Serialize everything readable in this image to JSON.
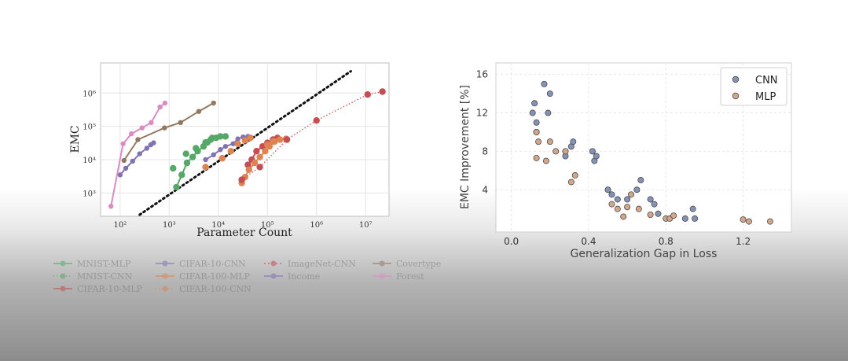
{
  "chart_data": [
    {
      "type": "line",
      "xlabel": "Parameter Count",
      "ylabel": "EMC",
      "x_scale": "log",
      "y_scale": "log",
      "xlim": [
        40,
        30000000
      ],
      "ylim": [
        200,
        8000000
      ],
      "x_ticks": [
        100,
        1000,
        10000,
        100000,
        1000000,
        10000000
      ],
      "x_tick_labels": [
        "10²",
        "10³",
        "10⁴",
        "10⁵",
        "10⁶",
        "10⁷"
      ],
      "y_ticks": [
        1000,
        10000,
        100000,
        1000000
      ],
      "y_tick_labels": [
        "10³",
        "10⁴",
        "10⁵",
        "10⁶"
      ],
      "grid": true,
      "reference_line": {
        "style": "dotted",
        "color": "#111111",
        "x": [
          250,
          5000000
        ],
        "y": [
          200,
          4500000
        ]
      },
      "legend": {
        "placement": "below",
        "entries": [
          [
            "MNIST-MLP",
            "CIFAR-10-CNN",
            "ImageNet-CNN",
            "Covertype"
          ],
          [
            "MNIST-CNN",
            "CIFAR-100-MLP",
            "Income",
            "Forest"
          ],
          [
            "CIFAR-10-MLP",
            "CIFAR-100-CNN"
          ]
        ]
      },
      "series": [
        {
          "name": "MNIST-MLP",
          "color": "#55a868",
          "marker": "circle",
          "style": "solid",
          "points": [
            [
              1400,
              1500
            ],
            [
              1800,
              3500
            ],
            [
              2300,
              8000
            ],
            [
              3000,
              12000
            ],
            [
              3800,
              18000
            ],
            [
              5000,
              25000
            ],
            [
              6000,
              33000
            ],
            [
              7000,
              40000
            ],
            [
              9000,
              45000
            ],
            [
              11000,
              50000
            ],
            [
              14000,
              50000
            ]
          ]
        },
        {
          "name": "MNIST-CNN",
          "color": "#55a868",
          "marker": "circle",
          "style": "none",
          "points": [
            [
              1200,
              5500
            ],
            [
              2200,
              15000
            ],
            [
              3500,
              22000
            ],
            [
              5500,
              33000
            ],
            [
              7500,
              45000
            ]
          ]
        },
        {
          "name": "CIFAR-10-MLP",
          "color": "#c44e52",
          "marker": "circle",
          "style": "solid",
          "points": [
            [
              40000,
              7000
            ],
            [
              48000,
              10000
            ],
            [
              60000,
              18000
            ],
            [
              80000,
              25000
            ],
            [
              100000,
              32000
            ],
            [
              130000,
              40000
            ],
            [
              160000,
              45000
            ]
          ]
        },
        {
          "name": "CIFAR-10-CNN",
          "color": "#8172b3",
          "marker": "circle",
          "style": "solid",
          "points": [
            [
              5500,
              10000
            ],
            [
              8000,
              14000
            ],
            [
              11000,
              20000
            ],
            [
              14000,
              25000
            ],
            [
              20000,
              30000
            ],
            [
              25000,
              42000
            ],
            [
              32000,
              48000
            ],
            [
              40000,
              50000
            ]
          ]
        },
        {
          "name": "CIFAR-100-MLP",
          "color": "#dd8452",
          "marker": "circle",
          "style": "solid",
          "points": [
            [
              30000,
              2000
            ],
            [
              35000,
              3000
            ],
            [
              42000,
              5000
            ],
            [
              55000,
              8000
            ],
            [
              70000,
              12000
            ],
            [
              90000,
              18000
            ],
            [
              110000,
              25000
            ],
            [
              140000,
              35000
            ],
            [
              180000,
              40000
            ],
            [
              240000,
              42000
            ]
          ]
        },
        {
          "name": "CIFAR-100-CNN",
          "color": "#dd8452",
          "marker": "circle",
          "style": "none",
          "points": [
            [
              5500,
              6000
            ],
            [
              12000,
              11000
            ],
            [
              18000,
              18000
            ],
            [
              25000,
              30000
            ],
            [
              35000,
              38000
            ],
            [
              45000,
              45000
            ],
            [
              100000,
              28000
            ],
            [
              130000,
              35000
            ]
          ]
        },
        {
          "name": "ImageNet-CNN",
          "color": "#c44e52",
          "marker": "circle",
          "style": "dotted",
          "points": [
            [
              30000,
              2500
            ],
            [
              70000,
              6000
            ],
            [
              250000,
              40000
            ],
            [
              1000000,
              150000
            ],
            [
              11000000,
              900000
            ],
            [
              22000000,
              1100000
            ]
          ]
        },
        {
          "name": "Covertype",
          "color": "#937860",
          "marker": "circle",
          "style": "solid",
          "points": [
            [
              120,
              9500
            ],
            [
              230,
              40000
            ],
            [
              800,
              90000
            ],
            [
              1700,
              130000
            ],
            [
              4000,
              280000
            ],
            [
              8000,
              500000
            ]
          ]
        },
        {
          "name": "Income",
          "color": "#8172b3",
          "marker": "circle",
          "style": "solid",
          "points": [
            [
              100,
              3500
            ],
            [
              130,
              5500
            ],
            [
              180,
              9000
            ],
            [
              250,
              15000
            ],
            [
              350,
              22000
            ],
            [
              420,
              28000
            ],
            [
              480,
              32000
            ]
          ]
        },
        {
          "name": "Forest",
          "color": "#da8bc3",
          "marker": "circle",
          "style": "solid",
          "points": [
            [
              65,
              400
            ],
            [
              115,
              30000
            ],
            [
              170,
              60000
            ],
            [
              280,
              90000
            ],
            [
              430,
              130000
            ],
            [
              650,
              380000
            ],
            [
              820,
              500000
            ]
          ]
        }
      ]
    },
    {
      "type": "scatter",
      "xlabel": "Generalization Gap in Loss",
      "ylabel": "EMC Improvement [%]",
      "xlim": [
        -0.08,
        1.45
      ],
      "ylim": [
        -0.4,
        17.2
      ],
      "x_ticks": [
        0.0,
        0.4,
        0.8,
        1.2
      ],
      "x_tick_labels": [
        "0.0",
        "0.4",
        "0.8",
        "1.2"
      ],
      "y_ticks": [
        4,
        8,
        12,
        16
      ],
      "y_tick_labels": [
        "4",
        "8",
        "12",
        "16"
      ],
      "grid": true,
      "legend": {
        "placement": "top-right",
        "entries": [
          "CNN",
          "MLP"
        ]
      },
      "series": [
        {
          "name": "CNN",
          "color": "#8592b7",
          "points": [
            [
              0.12,
              13
            ],
            [
              0.11,
              12
            ],
            [
              0.13,
              11
            ],
            [
              0.17,
              15
            ],
            [
              0.19,
              12
            ],
            [
              0.2,
              14
            ],
            [
              0.13,
              10
            ],
            [
              0.28,
              7.5
            ],
            [
              0.31,
              8.5
            ],
            [
              0.32,
              9
            ],
            [
              0.42,
              8
            ],
            [
              0.43,
              7
            ],
            [
              0.44,
              7.5
            ],
            [
              0.5,
              4
            ],
            [
              0.52,
              3.5
            ],
            [
              0.55,
              3
            ],
            [
              0.6,
              3
            ],
            [
              0.65,
              4
            ],
            [
              0.67,
              5
            ],
            [
              0.72,
              3
            ],
            [
              0.74,
              2.5
            ],
            [
              0.76,
              1.5
            ],
            [
              0.9,
              1
            ],
            [
              0.94,
              2
            ],
            [
              0.95,
              1
            ]
          ]
        },
        {
          "name": "MLP",
          "color": "#d1a68b",
          "points": [
            [
              0.13,
              10
            ],
            [
              0.14,
              9
            ],
            [
              0.2,
              9
            ],
            [
              0.13,
              7.3
            ],
            [
              0.18,
              7
            ],
            [
              0.23,
              8
            ],
            [
              0.28,
              8
            ],
            [
              0.31,
              4.8
            ],
            [
              0.33,
              5.5
            ],
            [
              0.52,
              2.5
            ],
            [
              0.55,
              2
            ],
            [
              0.58,
              1.2
            ],
            [
              0.6,
              2.2
            ],
            [
              0.62,
              3.5
            ],
            [
              0.66,
              2
            ],
            [
              0.72,
              1.4
            ],
            [
              0.8,
              1
            ],
            [
              0.82,
              1
            ],
            [
              0.84,
              1.3
            ],
            [
              1.2,
              0.9
            ],
            [
              1.23,
              0.7
            ],
            [
              1.34,
              0.7
            ]
          ]
        }
      ]
    }
  ]
}
